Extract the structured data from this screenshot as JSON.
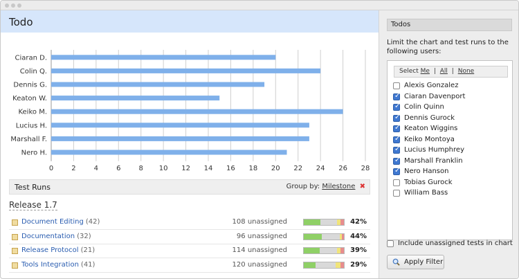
{
  "page": {
    "title": "Todo"
  },
  "chart_data": {
    "type": "bar",
    "orientation": "horizontal",
    "categories": [
      "Ciaran D.",
      "Colin Q.",
      "Dennis G.",
      "Keaton W.",
      "Keiko M.",
      "Lucius H.",
      "Marshall F.",
      "Nero H."
    ],
    "values": [
      20,
      24,
      19,
      15,
      26,
      23,
      23,
      21
    ],
    "xticks": [
      0,
      2,
      4,
      6,
      8,
      10,
      12,
      14,
      16,
      18,
      20,
      22,
      24,
      26,
      28
    ],
    "xlim": [
      0,
      28
    ],
    "grid": "vertical",
    "bar_color": "#7fb0ea",
    "title": "",
    "xlabel": "",
    "ylabel": ""
  },
  "test_runs": {
    "title": "Test Runs",
    "group_by_label": "Group by:",
    "group_by_value": "Milestone",
    "release": "Release 1.7",
    "rows": [
      {
        "name": "Document Editing",
        "count": "(42)",
        "unassigned": "108 unassigned",
        "percent": "42%",
        "segments": [
          {
            "color": "#8fd066",
            "value": 0.42
          },
          {
            "color": "#d9d9d9",
            "value": 0.4
          },
          {
            "color": "#f1e47a",
            "value": 0.1
          },
          {
            "color": "#e88d8d",
            "value": 0.08
          }
        ]
      },
      {
        "name": "Documentation",
        "count": "(32)",
        "unassigned": "96 unassigned",
        "percent": "44%",
        "segments": [
          {
            "color": "#8fd066",
            "value": 0.44
          },
          {
            "color": "#d9d9d9",
            "value": 0.46
          },
          {
            "color": "#f1e47a",
            "value": 0.05
          },
          {
            "color": "#e88d8d",
            "value": 0.05
          }
        ]
      },
      {
        "name": "Release Protocol",
        "count": "(21)",
        "unassigned": "114 unassigned",
        "percent": "39%",
        "segments": [
          {
            "color": "#8fd066",
            "value": 0.39
          },
          {
            "color": "#d9d9d9",
            "value": 0.43
          },
          {
            "color": "#f1e47a",
            "value": 0.1
          },
          {
            "color": "#e88d8d",
            "value": 0.08
          }
        ]
      },
      {
        "name": "Tools Integration",
        "count": "(41)",
        "unassigned": "120 unassigned",
        "percent": "29%",
        "segments": [
          {
            "color": "#8fd066",
            "value": 0.29
          },
          {
            "color": "#d9d9d9",
            "value": 0.51
          },
          {
            "color": "#f1e47a",
            "value": 0.12
          },
          {
            "color": "#e88d8d",
            "value": 0.08
          }
        ]
      }
    ]
  },
  "sidebar": {
    "title": "Todos",
    "description": "Limit the chart and test runs to the following users:",
    "select_label": "Select",
    "select_me": "Me",
    "select_all": "All",
    "select_none": "None",
    "users": [
      {
        "name": "Alexis Gonzalez",
        "checked": false
      },
      {
        "name": "Ciaran Davenport",
        "checked": true
      },
      {
        "name": "Colin Quinn",
        "checked": true
      },
      {
        "name": "Dennis Gurock",
        "checked": true
      },
      {
        "name": "Keaton Wiggins",
        "checked": true
      },
      {
        "name": "Keiko Montoya",
        "checked": true
      },
      {
        "name": "Lucius Humphrey",
        "checked": true
      },
      {
        "name": "Marshall Franklin",
        "checked": true
      },
      {
        "name": "Nero Hanson",
        "checked": true
      },
      {
        "name": "Tobias Gurock",
        "checked": false
      },
      {
        "name": "William Bass",
        "checked": false
      }
    ],
    "include_unassigned_label": "Include unassigned tests in chart",
    "include_unassigned_checked": false,
    "apply_filter_label": "Apply Filter"
  }
}
